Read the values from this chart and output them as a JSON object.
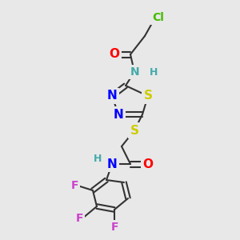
{
  "background_color": "#e8e8e8",
  "figsize": [
    3.0,
    3.0
  ],
  "dpi": 100,
  "bond_color": "#333333",
  "bond_lw": 1.5,
  "colors": {
    "Cl": "#44bb00",
    "O": "#ff0000",
    "N": "#0000ff",
    "NH_teal": "#44aaaa",
    "S": "#cccc00",
    "F": "#cc44cc",
    "C": "#333333"
  }
}
